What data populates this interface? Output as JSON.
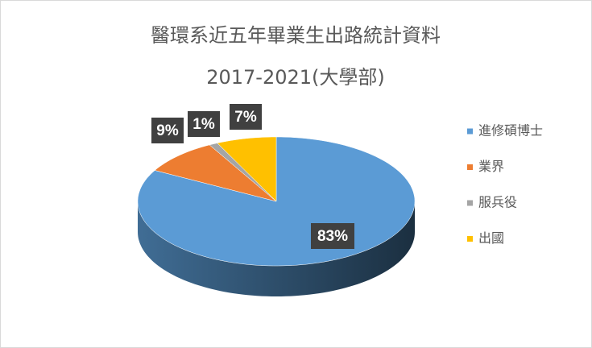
{
  "chart_data": {
    "type": "pie3d",
    "title": "醫環系近五年畢業生出路統計資料",
    "subtitle": "2017-2021(大學部)",
    "categories": [
      "進修碩博士",
      "業界",
      "服兵役",
      "出國"
    ],
    "values": [
      83,
      9,
      1,
      7
    ],
    "value_labels": [
      "83%",
      "9%",
      "1%",
      "7%"
    ],
    "colors": [
      "#5b9bd5",
      "#ed7d31",
      "#a5a5a5",
      "#ffc000"
    ],
    "legend": "right"
  }
}
